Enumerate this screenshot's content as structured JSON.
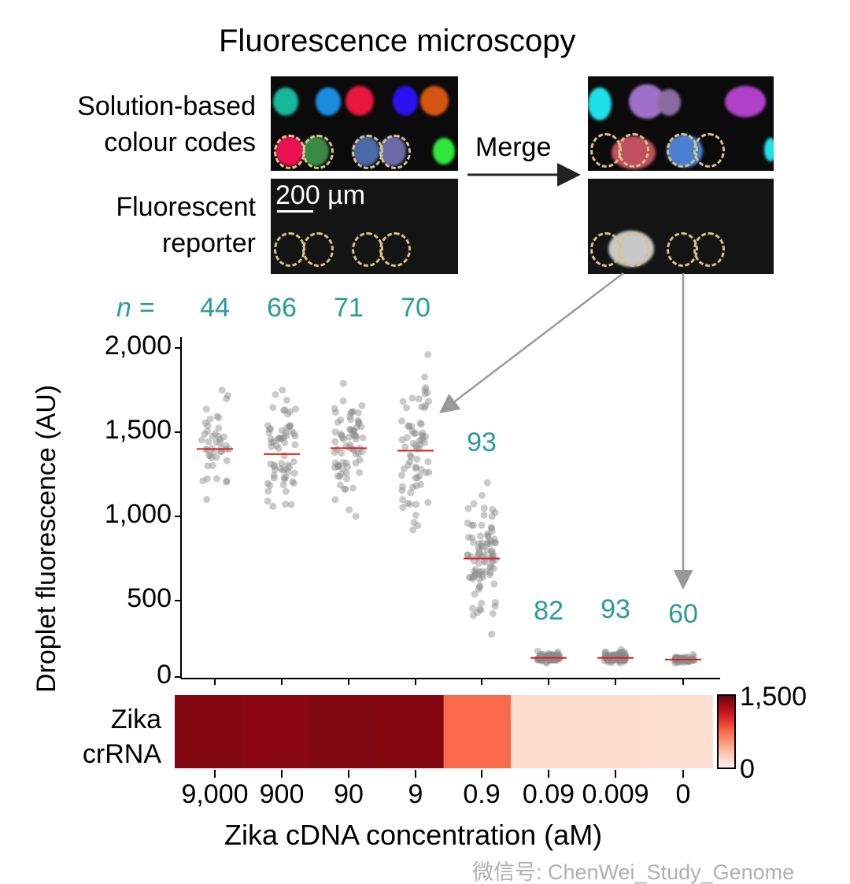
{
  "figure": {
    "title": "Fluorescence microscopy",
    "row_label_1": [
      "Solution-based",
      "colour codes"
    ],
    "row_label_2": [
      "Fluorescent",
      "reporter"
    ],
    "merge_label": "Merge",
    "scale_bar": "200 µm",
    "n_prefix": "n =",
    "watermark": "微信号: ChenWei_Study_Genome"
  },
  "chart_data": {
    "type": "scatter",
    "ylabel": "Droplet fluorescence (AU)",
    "xlabel": "Zika cDNA concentration (aM)",
    "ylim": [
      0,
      2000
    ],
    "yticks": [
      "0",
      "500",
      "1,000",
      "1,500",
      "2,000"
    ],
    "ytick_values": [
      0,
      500,
      1000,
      1500,
      2000
    ],
    "categories": [
      "9,000",
      "900",
      "90",
      "9",
      "0.9",
      "0.09",
      "0.009",
      "0"
    ],
    "n": [
      "44",
      "66",
      "71",
      "70",
      "93",
      "82",
      "93",
      "60"
    ],
    "median": [
      1400,
      1370,
      1405,
      1390,
      750,
      160,
      160,
      150
    ],
    "min": [
      1100,
      1060,
      1000,
      920,
      300,
      130,
      130,
      130
    ],
    "max": [
      1750,
      1750,
      1790,
      1960,
      1200,
      200,
      210,
      180
    ],
    "point_color": "#8a8a8a",
    "median_color": "#e0201b",
    "n_color": "#2a9a9a",
    "heatmap": {
      "row_label": [
        "Zika",
        "crRNA"
      ],
      "values": [
        1400,
        1370,
        1405,
        1390,
        750,
        160,
        160,
        150
      ],
      "colorbar_min": "0",
      "colorbar_max": "1,500",
      "colormap": [
        "#fff5f0",
        "#fcbba1",
        "#fb6a4a",
        "#cb181d",
        "#67000d"
      ]
    }
  }
}
